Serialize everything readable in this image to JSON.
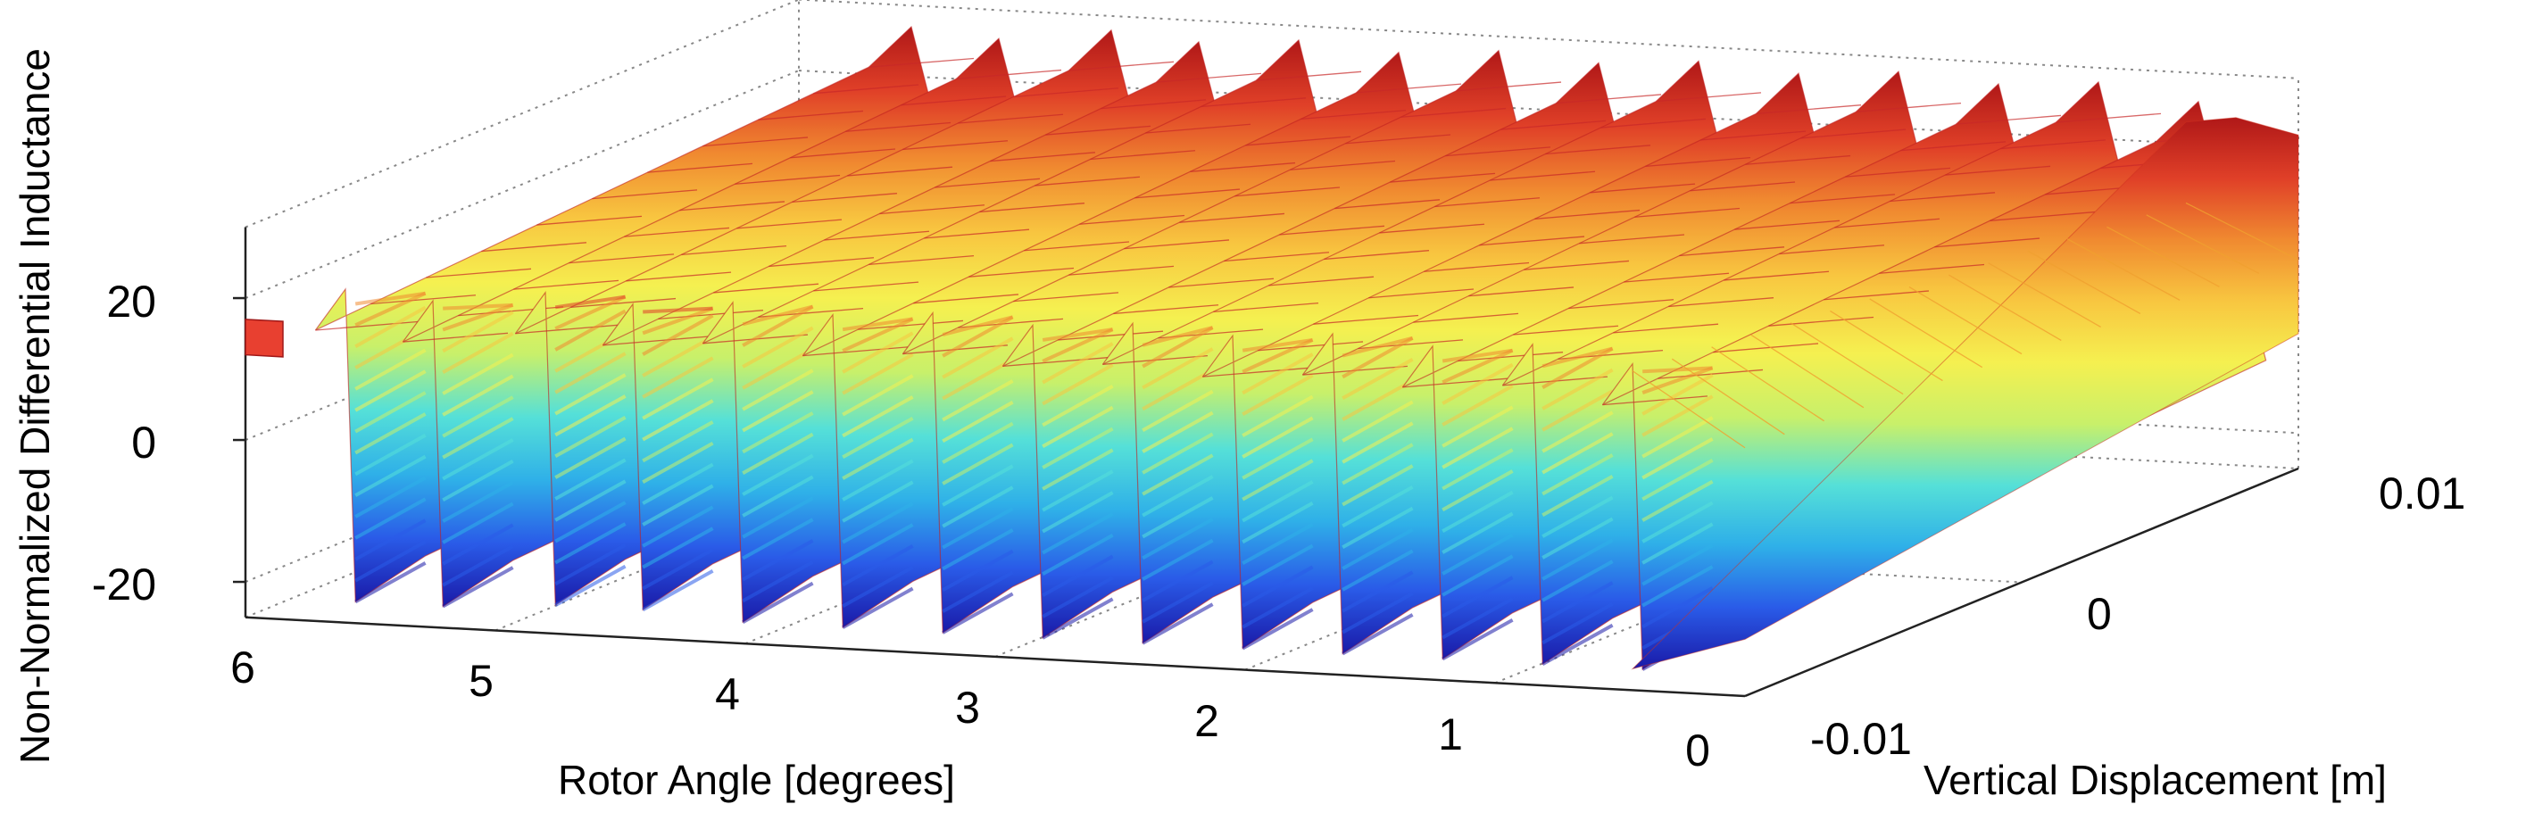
{
  "chart_data": {
    "type": "surface3d",
    "zlabel": "Non-Normalized Differential Inductance",
    "xlabel": "Rotor Angle [degrees]",
    "ylabel": "Vertical Displacement [m]",
    "x_ticks": [
      "6",
      "5",
      "4",
      "3",
      "2",
      "1",
      "0"
    ],
    "y_ticks": [
      "-0.01",
      "0",
      "0.01"
    ],
    "z_ticks": [
      "20",
      "0",
      "-20"
    ],
    "xlim": [
      0,
      6
    ],
    "ylim": [
      -0.01,
      0.01
    ],
    "zlim": [
      -25,
      30
    ],
    "grid": true,
    "colormap": "jet",
    "colormap_stops": [
      "#1a1aa8",
      "#2a5be8",
      "#2fb0e8",
      "#55e0d8",
      "#c8f06a",
      "#f5f050",
      "#f8c640",
      "#f08a30",
      "#e04028",
      "#b01818"
    ],
    "ridges": [
      {
        "rotor_angle": 5.6,
        "min": -22,
        "max": 22
      },
      {
        "rotor_angle": 5.25,
        "min": -22,
        "max": 21
      },
      {
        "rotor_angle": 4.8,
        "min": -21,
        "max": 23
      },
      {
        "rotor_angle": 4.45,
        "min": -21,
        "max": 22
      },
      {
        "rotor_angle": 4.05,
        "min": -22,
        "max": 23
      },
      {
        "rotor_angle": 3.65,
        "min": -22,
        "max": 22
      },
      {
        "rotor_angle": 3.25,
        "min": -22,
        "max": 23
      },
      {
        "rotor_angle": 2.85,
        "min": -22,
        "max": 22
      },
      {
        "rotor_angle": 2.45,
        "min": -22,
        "max": 23
      },
      {
        "rotor_angle": 2.05,
        "min": -22,
        "max": 22
      },
      {
        "rotor_angle": 1.65,
        "min": -22,
        "max": 23
      },
      {
        "rotor_angle": 1.25,
        "min": -22,
        "max": 22
      },
      {
        "rotor_angle": 0.85,
        "min": -22,
        "max": 23
      },
      {
        "rotor_angle": 0.45,
        "min": -22,
        "max": 21
      }
    ]
  }
}
